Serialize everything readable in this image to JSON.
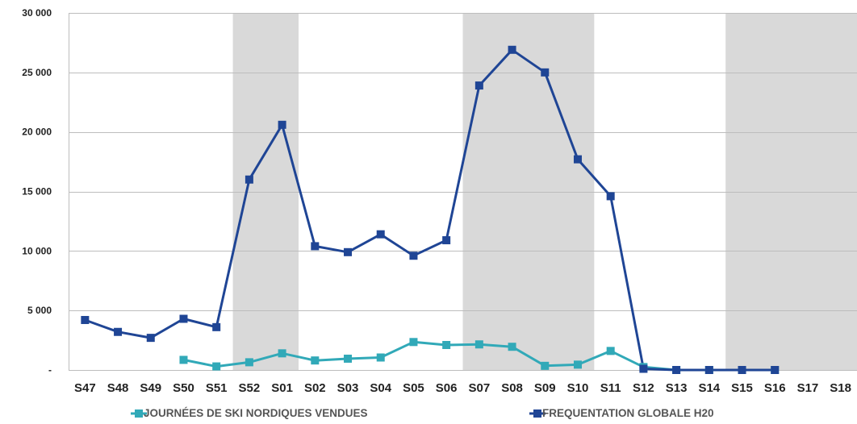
{
  "chart_data": {
    "type": "line",
    "categories": [
      "S47",
      "S48",
      "S49",
      "S50",
      "S51",
      "S52",
      "S01",
      "S02",
      "S03",
      "S04",
      "S05",
      "S06",
      "S07",
      "S08",
      "S09",
      "S10",
      "S11",
      "S12",
      "S13",
      "S14",
      "S15",
      "S16",
      "S17",
      "S18"
    ],
    "ylim": [
      0,
      30000
    ],
    "yticks": [
      0,
      5000,
      10000,
      15000,
      20000,
      25000,
      30000
    ],
    "ytick_labels": [
      "-",
      "5 000",
      "10 000",
      "15 000",
      "20 000",
      "25 000",
      "30 000"
    ],
    "shaded_periods": [
      [
        "S52",
        "S01"
      ],
      [
        "S07",
        "S10"
      ],
      [
        "S15",
        "S18"
      ]
    ],
    "grid": true,
    "legend_position": "bottom",
    "series": [
      {
        "name": "JOURNÉES DE SKI NORDIQUES VENDUES",
        "color": "#31a9b8",
        "values": [
          null,
          null,
          null,
          850,
          300,
          650,
          1400,
          800,
          950,
          1050,
          2350,
          2100,
          2150,
          1950,
          350,
          450,
          1600,
          250,
          0,
          0,
          0,
          0,
          null,
          null
        ]
      },
      {
        "name": "FREQUENTATION GLOBALE H20",
        "color": "#1f4595",
        "values": [
          4200,
          3200,
          2700,
          4300,
          3600,
          16000,
          20600,
          10400,
          9900,
          11400,
          9600,
          10900,
          23900,
          26900,
          25000,
          17700,
          14600,
          100,
          0,
          0,
          0,
          0,
          null,
          null
        ]
      }
    ]
  }
}
